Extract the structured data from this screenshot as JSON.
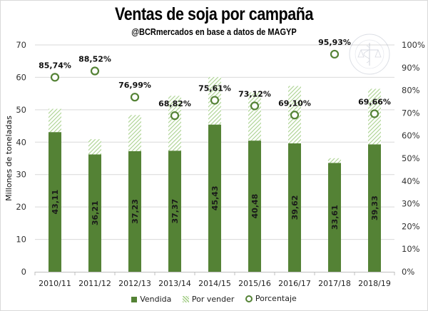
{
  "chart_data": {
    "type": "bar",
    "stacked": true,
    "title": "Ventas de soja por campaña",
    "subtitle": "@BCRmercados  en base a datos de MAGYP",
    "xlabel": "",
    "ylabel": "Millones de toneladas",
    "y2label": "",
    "ylim": [
      0,
      70
    ],
    "y2lim": [
      0,
      100
    ],
    "yticks": [
      "0",
      "10",
      "20",
      "30",
      "40",
      "50",
      "60",
      "70"
    ],
    "y2ticks": [
      "0%",
      "10%",
      "20%",
      "30%",
      "40%",
      "50%",
      "60%",
      "70%",
      "80%",
      "90%",
      "100%"
    ],
    "grid": true,
    "legend_position": "bottom",
    "categories": [
      "2010/11",
      "2011/12",
      "2012/13",
      "2013/14",
      "2014/15",
      "2015/16",
      "2016/17",
      "2017/18",
      "2018/19"
    ],
    "series": [
      {
        "name": "Vendida",
        "type": "bar",
        "axis": "left",
        "color": "#548235",
        "values": [
          43.11,
          36.21,
          37.23,
          37.37,
          45.43,
          40.48,
          39.62,
          33.61,
          39.33
        ],
        "labels": [
          "43,11",
          "36,21",
          "37,23",
          "37,37",
          "45,43",
          "40,48",
          "39,62",
          "33,61",
          "39,33"
        ]
      },
      {
        "name": "Por vender",
        "type": "bar",
        "axis": "left",
        "color": "#a9d18e",
        "pattern": "hatch",
        "values": [
          7.17,
          4.7,
          11.13,
          16.93,
          14.65,
          14.88,
          17.72,
          1.43,
          17.13
        ]
      },
      {
        "name": "Porcentaje",
        "type": "scatter",
        "axis": "right",
        "color": "#548235",
        "marker": "hollow-circle",
        "values": [
          85.74,
          88.52,
          76.99,
          68.82,
          75.61,
          73.12,
          69.1,
          95.93,
          69.66
        ],
        "labels": [
          "85,74%",
          "88,52%",
          "76,99%",
          "68,82%",
          "75,61%",
          "73,12%",
          "69,10%",
          "95,93%",
          "69,66%"
        ]
      }
    ],
    "watermark": "BOLSA DE COMERCIO DE ROSARIO"
  },
  "legend": {
    "vendida": "Vendida",
    "por_vender": "Por vender",
    "porcentaje": "Porcentaje"
  }
}
